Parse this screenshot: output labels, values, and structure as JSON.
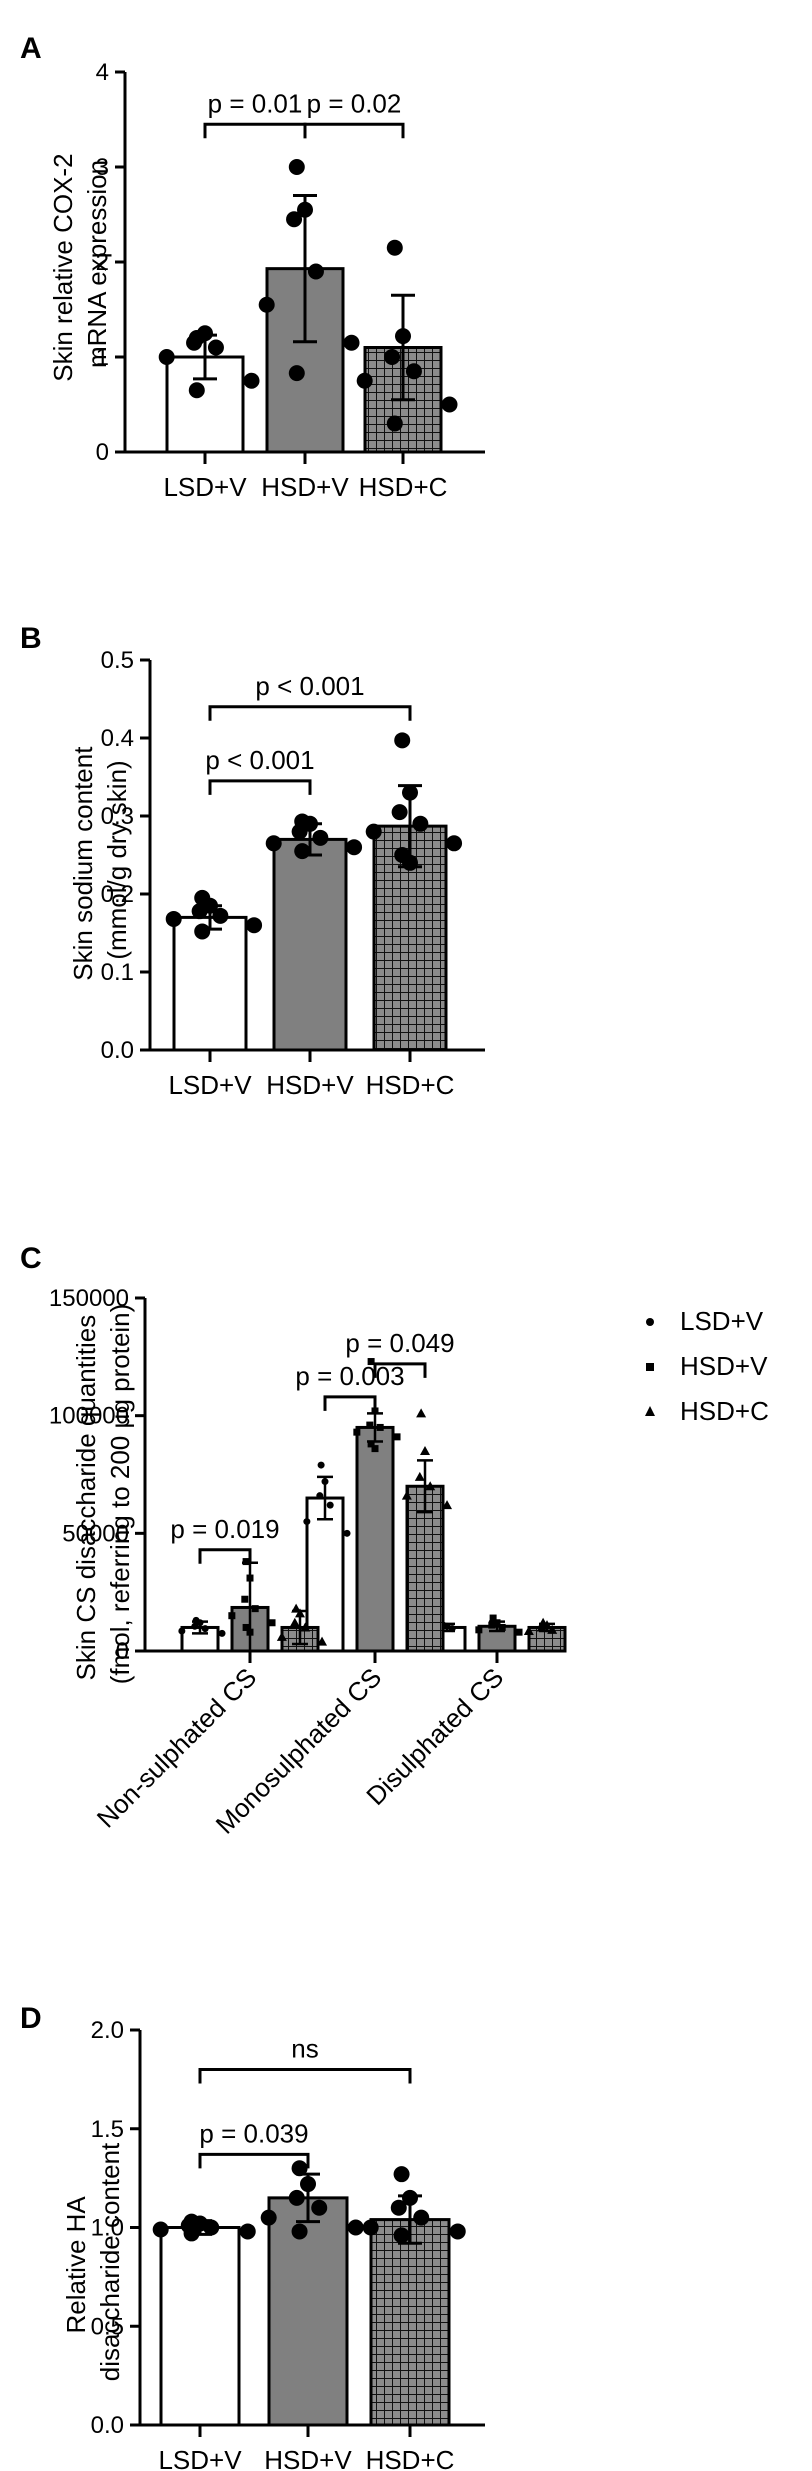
{
  "colors": {
    "white_bar": "#ffffff",
    "grey_bar": "#808080",
    "checker_bar": "#8c8c8c",
    "stroke": "#000000"
  },
  "chart_data": [
    {
      "panel": "A",
      "type": "bar",
      "ylabel": "Skin relative COX-2 mRNA expression",
      "ylabel_lines": [
        "Skin relative COX-2",
        "mRNA expression"
      ],
      "ylim": [
        0,
        4
      ],
      "yticks": [
        "0",
        "1",
        "2",
        "3",
        "4"
      ],
      "categories": [
        "LSD+V",
        "HSD+V",
        "HSD+C"
      ],
      "values": [
        1.0,
        1.93,
        1.1
      ],
      "error": [
        0.23,
        0.77,
        0.55
      ],
      "points": [
        [
          1.2,
          1.25,
          1.15,
          1.1,
          1.0,
          0.75,
          0.65
        ],
        [
          3.0,
          2.55,
          2.45,
          1.9,
          1.55,
          1.15,
          0.83
        ],
        [
          2.15,
          1.22,
          1.0,
          0.85,
          0.75,
          0.5,
          0.3
        ]
      ],
      "annotations": [
        {
          "text": "p = 0.01",
          "from": 0,
          "to": 1,
          "y": 3.45
        },
        {
          "text": "p = 0.02",
          "from": 1,
          "to": 2,
          "y": 3.45
        }
      ]
    },
    {
      "panel": "B",
      "type": "bar",
      "ylabel": "Skin sodium content (mmol/g dry skin)",
      "ylabel_lines": [
        "Skin sodium content",
        "(mmol/g dry skin)"
      ],
      "ylim": [
        0,
        0.5
      ],
      "yticks": [
        "0.0",
        "0.1",
        "0.2",
        "0.3",
        "0.4",
        "0.5"
      ],
      "categories": [
        "LSD+V",
        "HSD+V",
        "HSD+C"
      ],
      "values": [
        0.17,
        0.27,
        0.287
      ],
      "error": [
        0.015,
        0.02,
        0.052
      ],
      "points": [
        [
          0.195,
          0.185,
          0.178,
          0.172,
          0.168,
          0.16,
          0.152
        ],
        [
          0.293,
          0.29,
          0.28,
          0.272,
          0.265,
          0.26,
          0.255
        ],
        [
          0.397,
          0.33,
          0.305,
          0.29,
          0.28,
          0.265,
          0.25,
          0.24
        ]
      ],
      "annotations": [
        {
          "text": "p < 0.001",
          "from": 0,
          "to": 1,
          "y": 0.345
        },
        {
          "text": "p < 0.001",
          "from": 0,
          "to": 2,
          "y": 0.44
        }
      ]
    },
    {
      "panel": "C",
      "type": "bar",
      "ylabel": "Skin CS disaccharide quantities (fmol, referring to 200 μg protein)",
      "ylabel_lines": [
        "Skin CS disaccharide quantities",
        "(fmol, referring to 200 μg protein)"
      ],
      "ylim": [
        0,
        150000
      ],
      "yticks": [
        "0",
        "50000",
        "100000",
        "150000"
      ],
      "categories": [
        "Non-sulphated CS",
        "Monosulphated CS",
        "Disulphated CS"
      ],
      "series": [
        {
          "name": "LSD+V",
          "values": [
            10000,
            65000,
            10000
          ],
          "error": [
            2500,
            9000,
            1500
          ],
          "points": [
            [
              13000,
              12000,
              10500,
              9500,
              8500,
              7500
            ],
            [
              79000,
              72000,
              66000,
              62000,
              55000,
              50000
            ],
            [
              11000,
              10500,
              10000,
              9500,
              9000
            ]
          ]
        },
        {
          "name": "HSD+V",
          "values": [
            18500,
            95000,
            10500
          ],
          "error": [
            19000,
            6000,
            2000
          ],
          "points": [
            [
              38000,
              31000,
              22000,
              18000,
              15000,
              12000,
              10000,
              8000
            ],
            [
              123000,
              102000,
              96000,
              95000,
              93000,
              91000,
              88000,
              86000
            ],
            [
              14000,
              12000,
              11000,
              10000,
              9000,
              8000
            ]
          ]
        },
        {
          "name": "HSD+C",
          "values": [
            10000,
            70000,
            10000
          ],
          "error": [
            7000,
            11000,
            1500
          ],
          "points": [
            [
              18000,
              16000,
              12000,
              10000,
              6000,
              4000
            ],
            [
              101000,
              85000,
              74000,
              70000,
              66000,
              62000
            ],
            [
              12000,
              11000,
              10000,
              9000,
              8500
            ]
          ]
        }
      ],
      "annotations": [
        {
          "text": "p = 0.019",
          "group": 0,
          "from": 0,
          "to": 1,
          "y": 43000
        },
        {
          "text": "p = 0.003",
          "group": 1,
          "from": 0,
          "to": 1,
          "y": 108000
        },
        {
          "text": "p = 0.049",
          "group": 1,
          "from": 1,
          "to": 2,
          "y": 122000
        }
      ],
      "legend_position": "top-right"
    },
    {
      "panel": "D",
      "type": "bar",
      "ylabel": "Relative HA disaccharide content",
      "ylabel_lines": [
        "Relative HA",
        "disaccharide content"
      ],
      "ylim": [
        0,
        2.0
      ],
      "yticks": [
        "0.0",
        "0.5",
        "1.0",
        "1.5",
        "2.0"
      ],
      "categories": [
        "LSD+V",
        "HSD+V",
        "HSD+C"
      ],
      "values": [
        1.0,
        1.15,
        1.04
      ],
      "error": [
        0.035,
        0.12,
        0.12
      ],
      "points": [
        [
          1.03,
          1.02,
          1.01,
          1.0,
          0.99,
          0.98,
          0.97
        ],
        [
          1.3,
          1.22,
          1.15,
          1.1,
          1.05,
          1.0,
          0.98
        ],
        [
          1.27,
          1.15,
          1.1,
          1.05,
          1.0,
          0.98,
          0.96
        ]
      ],
      "annotations": [
        {
          "text": "p = 0.039",
          "from": 0,
          "to": 1,
          "y": 1.37
        },
        {
          "text": "ns",
          "from": 0,
          "to": 2,
          "y": 1.8
        }
      ]
    }
  ]
}
